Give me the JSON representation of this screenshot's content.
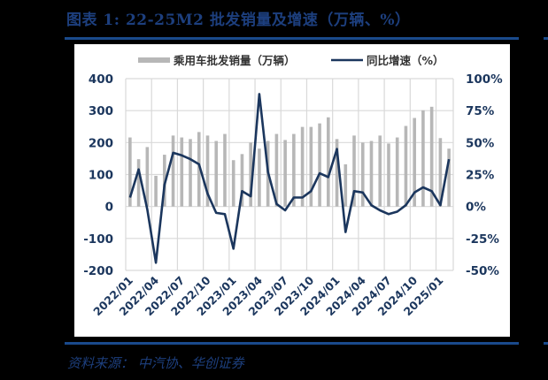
{
  "header": {
    "title": "图表 1:  22-25M2 批发销量及增速（万辆、%）"
  },
  "footer": {
    "source": "资料来源：  中汽协、华创证券"
  },
  "colors": {
    "background": "#000000",
    "title": "#1d3f7e",
    "rule": "#1a4a8c",
    "bar": "#b7b7b7",
    "line": "#1b365d",
    "axis_text": "#1b365d",
    "grid": "#d9d9d9"
  },
  "chart_data": {
    "type": "bar+line",
    "title": "22-25M2 批发销量及增速（万辆、%）",
    "legend": [
      "乘用车批发销量（万辆）",
      "同比增速（%）"
    ],
    "legend_position": "top",
    "grid": true,
    "categories": [
      "2022/01",
      "2022/02",
      "2022/03",
      "2022/04",
      "2022/05",
      "2022/06",
      "2022/07",
      "2022/08",
      "2022/09",
      "2022/10",
      "2022/11",
      "2022/12",
      "2023/01",
      "2023/02",
      "2023/03",
      "2023/04",
      "2023/05",
      "2023/06",
      "2023/07",
      "2023/08",
      "2023/09",
      "2023/10",
      "2023/11",
      "2023/12",
      "2024/01",
      "2024/02",
      "2024/03",
      "2024/04",
      "2024/05",
      "2024/06",
      "2024/07",
      "2024/08",
      "2024/09",
      "2024/10",
      "2024/11",
      "2024/12",
      "2025/01",
      "2025/02"
    ],
    "x_tick_labels": [
      "2022/01",
      "2022/04",
      "2022/07",
      "2022/10",
      "2023/01",
      "2023/04",
      "2023/07",
      "2023/10",
      "2024/01",
      "2024/04",
      "2024/07",
      "2024/10",
      "2025/01"
    ],
    "series": [
      {
        "name": "乘用车批发销量（万辆）",
        "type": "bar",
        "axis": "left",
        "values": [
          216,
          148,
          186,
          96,
          162,
          222,
          216,
          211,
          233,
          222,
          205,
          227,
          145,
          164,
          200,
          181,
          205,
          227,
          208,
          227,
          249,
          249,
          260,
          279,
          211,
          132,
          222,
          200,
          205,
          222,
          197,
          216,
          252,
          277,
          301,
          312,
          214,
          181
        ]
      },
      {
        "name": "同比增速（%）",
        "type": "line",
        "axis": "right",
        "values": [
          7,
          29,
          -2,
          -44,
          17,
          42,
          40,
          37,
          33,
          10,
          -5,
          -6,
          -33,
          12,
          8,
          88,
          27,
          2,
          -3,
          7,
          7,
          12,
          26,
          23,
          45,
          -20,
          12,
          11,
          1,
          -3,
          -6,
          -4,
          1,
          11,
          15,
          12,
          1,
          37
        ]
      }
    ],
    "y_left": {
      "ticks": [
        "400",
        "300",
        "200",
        "100",
        "0",
        "-100",
        "-200"
      ],
      "min": -200,
      "max": 400
    },
    "y_right": {
      "ticks": [
        "100%",
        "75%",
        "50%",
        "25%",
        "0%",
        "-25%",
        "-50%"
      ],
      "min": -50,
      "max": 100
    },
    "xlabel": "",
    "ylabel": ""
  }
}
